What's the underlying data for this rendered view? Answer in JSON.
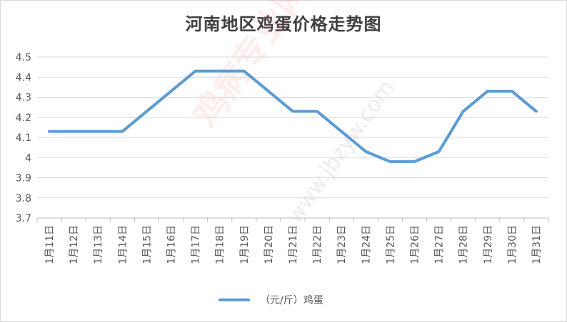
{
  "chart_data": {
    "type": "line",
    "title": "河南地区鸡蛋价格走势图",
    "categories": [
      "1月11日",
      "1月12日",
      "1月13日",
      "1月14日",
      "1月15日",
      "1月16日",
      "1月17日",
      "1月18日",
      "1月19日",
      "1月20日",
      "1月21日",
      "1月22日",
      "1月23日",
      "1月24日",
      "1月25日",
      "1月26日",
      "1月27日",
      "1月28日",
      "1月29日",
      "1月30日",
      "1月31日"
    ],
    "series": [
      {
        "name": "（元/斤）鸡蛋",
        "values": [
          4.13,
          4.13,
          4.13,
          4.13,
          4.23,
          4.33,
          4.43,
          4.43,
          4.43,
          4.33,
          4.23,
          4.23,
          4.13,
          4.03,
          3.98,
          3.98,
          4.03,
          4.23,
          4.33,
          4.33,
          4.23
        ]
      }
    ],
    "ylim": [
      3.7,
      4.5
    ],
    "yticks": [
      3.7,
      3.8,
      3.9,
      4,
      4.1,
      4.2,
      4.3,
      4.4,
      4.5
    ],
    "ytick_labels": [
      "3.7",
      "3.8",
      "3.9",
      "4",
      "4.1",
      "4.2",
      "4.3",
      "4.4",
      "4.5"
    ],
    "grid": true,
    "legend_position": "bottom",
    "colors": {
      "line": "#5b9bd5",
      "grid": "#d9d9d9",
      "axis": "#bfbfbf",
      "text": "#595959"
    }
  },
  "watermark": {
    "main": "鸡病专业网",
    "sub": "www.jbzyw.com"
  }
}
